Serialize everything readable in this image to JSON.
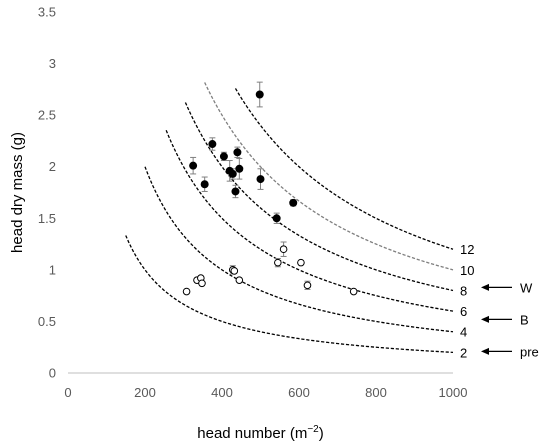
{
  "chart_data": {
    "type": "scatter",
    "xlabel": "head number (m",
    "xlabel_sup": "−2",
    "xlabel_close": ")",
    "ylabel": "head dry mass (g)",
    "xlim": [
      0,
      1000
    ],
    "ylim": [
      0,
      3.5
    ],
    "x_ticks": [
      0,
      200,
      400,
      600,
      800,
      1000
    ],
    "y_ticks": [
      0,
      0.5,
      1,
      1.5,
      2,
      2.5,
      3,
      3.5
    ],
    "x_tick_labels": [
      "0",
      "200",
      "400",
      "600",
      "800",
      "1000"
    ],
    "y_tick_labels": [
      "0",
      "0.5",
      "1",
      "1.5",
      "2",
      "2.5",
      "3",
      "3.5"
    ],
    "grid": false,
    "iso_curves": [
      {
        "label": "2",
        "product": 200,
        "x_start": 150,
        "x_end": 1000,
        "style": "dashed",
        "color": "#000000"
      },
      {
        "label": "4",
        "product": 400,
        "x_start": 200,
        "x_end": 1000,
        "style": "dashed",
        "color": "#000000"
      },
      {
        "label": "6",
        "product": 600,
        "x_start": 255,
        "x_end": 1000,
        "style": "dashed",
        "color": "#000000"
      },
      {
        "label": "8",
        "product": 800,
        "x_start": 305,
        "x_end": 1000,
        "style": "dashed",
        "color": "#000000"
      },
      {
        "label": "10",
        "product": 1000,
        "x_start": 355,
        "x_end": 1000,
        "style": "dashed",
        "color": "#7f7f7f"
      },
      {
        "label": "12",
        "product": 1200,
        "x_start": 435,
        "x_end": 1000,
        "style": "dashed",
        "color": "#000000"
      }
    ],
    "series": [
      {
        "marker": "filled",
        "color": "#000000",
        "points": [
          {
            "x": 325,
            "y": 2.01,
            "err": 0.08
          },
          {
            "x": 355,
            "y": 1.83,
            "err": 0.07
          },
          {
            "x": 375,
            "y": 2.22,
            "err": 0.06
          },
          {
            "x": 405,
            "y": 2.1,
            "err": 0.04
          },
          {
            "x": 420,
            "y": 1.96,
            "err": 0.1
          },
          {
            "x": 428,
            "y": 1.93,
            "err": 0.05
          },
          {
            "x": 435,
            "y": 1.76,
            "err": 0.06
          },
          {
            "x": 440,
            "y": 2.14,
            "err": 0.05
          },
          {
            "x": 445,
            "y": 1.98,
            "err": 0.1
          },
          {
            "x": 498,
            "y": 2.7,
            "err": 0.12
          },
          {
            "x": 500,
            "y": 1.88,
            "err": 0.1
          },
          {
            "x": 542,
            "y": 1.5,
            "err": 0.05
          },
          {
            "x": 585,
            "y": 1.65,
            "err": 0.03
          }
        ]
      },
      {
        "marker": "open",
        "color": "#000000",
        "points": [
          {
            "x": 308,
            "y": 0.79,
            "err": 0
          },
          {
            "x": 335,
            "y": 0.9,
            "err": 0
          },
          {
            "x": 345,
            "y": 0.92,
            "err": 0
          },
          {
            "x": 348,
            "y": 0.87,
            "err": 0
          },
          {
            "x": 428,
            "y": 1.0,
            "err": 0.04
          },
          {
            "x": 432,
            "y": 0.99,
            "err": 0
          },
          {
            "x": 445,
            "y": 0.9,
            "err": 0
          },
          {
            "x": 545,
            "y": 1.07,
            "err": 0.04
          },
          {
            "x": 560,
            "y": 1.2,
            "err": 0.07
          },
          {
            "x": 605,
            "y": 1.07,
            "err": 0
          },
          {
            "x": 622,
            "y": 0.85,
            "err": 0.04
          },
          {
            "x": 742,
            "y": 0.79,
            "err": 0
          }
        ]
      }
    ],
    "annotations": [
      {
        "label": "W",
        "y": 0.83
      },
      {
        "label": "B",
        "y": 0.52
      },
      {
        "label": "pre",
        "y": 0.21
      }
    ]
  }
}
